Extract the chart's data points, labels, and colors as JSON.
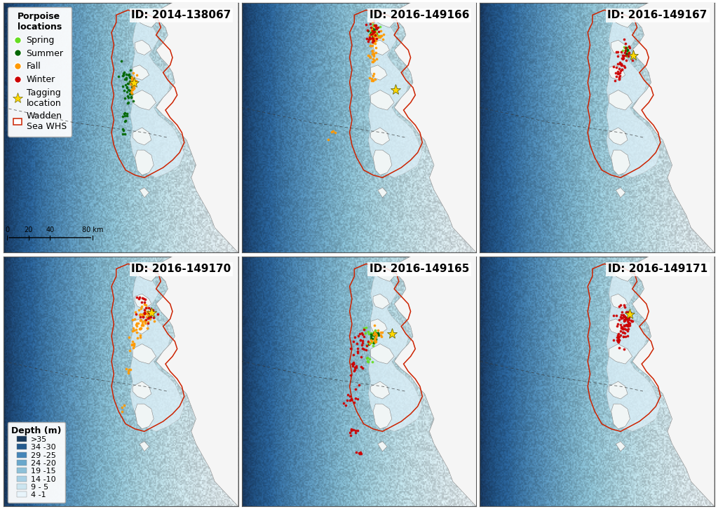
{
  "panels": [
    {
      "id": "2014-138067",
      "row": 0,
      "col": 0
    },
    {
      "id": "2016-149166",
      "row": 0,
      "col": 1
    },
    {
      "id": "2016-149167",
      "row": 0,
      "col": 2
    },
    {
      "id": "2016-149170",
      "row": 1,
      "col": 0
    },
    {
      "id": "2016-149165",
      "row": 1,
      "col": 1
    },
    {
      "id": "2016-149171",
      "row": 1,
      "col": 2
    }
  ],
  "season_colors": {
    "spring": "#66DD22",
    "summer": "#006600",
    "fall": "#FF9900",
    "winter": "#CC0000"
  },
  "depth_colors_gradient": [
    "#1a3a5c",
    "#1e4878",
    "#245a8e",
    "#2d6fa5",
    "#4485b8",
    "#5e9ec8",
    "#7ab5d5",
    "#96cae0",
    "#b5daea",
    "#cfe8f2",
    "#e2f0f8",
    "#f0f7fb"
  ],
  "land_color": "#f5f5f5",
  "land_edge_color": "#888888",
  "wadden_shallow_color": "#daedf7",
  "whs_border_color": "#cc2200",
  "tagging_star_color": "#FFD700",
  "tagging_star_edge": "#555500",
  "fig_background": "#ffffff",
  "panel_border_color": "#555555",
  "title_fontsize": 11,
  "legend_fontsize": 9,
  "depth_legend_labels": [
    ">35",
    "34 -30",
    "29 -25",
    "24 -20",
    "19 -15",
    "14 -10",
    "9 - 5",
    "4 -1"
  ],
  "depth_legend_colors": [
    "#1a3a5c",
    "#245a8e",
    "#4485b8",
    "#6aa8cc",
    "#8ec0d8",
    "#a8d0e5",
    "#cce5f0",
    "#e8f4fb"
  ],
  "xlim": [
    0,
    10
  ],
  "ylim": [
    0,
    10
  ]
}
